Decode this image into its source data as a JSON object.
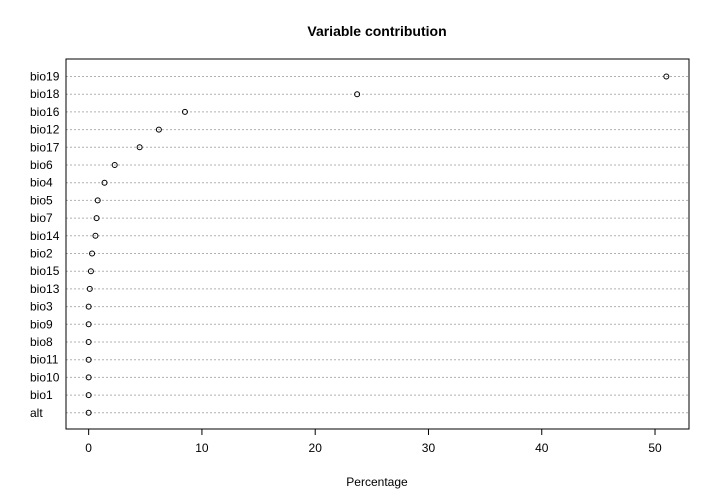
{
  "chart_data": {
    "type": "scatter",
    "title": "Variable contribution",
    "xlabel": "Percentage",
    "ylabel": "",
    "xlim": [
      -2,
      53
    ],
    "xticks": [
      0,
      10,
      20,
      30,
      40,
      50
    ],
    "grid": "horizontal-dashed",
    "categories": [
      "bio19",
      "bio18",
      "bio16",
      "bio12",
      "bio17",
      "bio6",
      "bio4",
      "bio5",
      "bio7",
      "bio14",
      "bio2",
      "bio15",
      "bio13",
      "bio3",
      "bio9",
      "bio8",
      "bio11",
      "bio10",
      "bio1",
      "alt"
    ],
    "values": [
      51.0,
      23.7,
      8.5,
      6.2,
      4.5,
      2.3,
      1.4,
      0.8,
      0.7,
      0.6,
      0.3,
      0.2,
      0.1,
      0.0,
      0.0,
      0.0,
      0.0,
      0.0,
      0.0,
      0.0
    ]
  }
}
